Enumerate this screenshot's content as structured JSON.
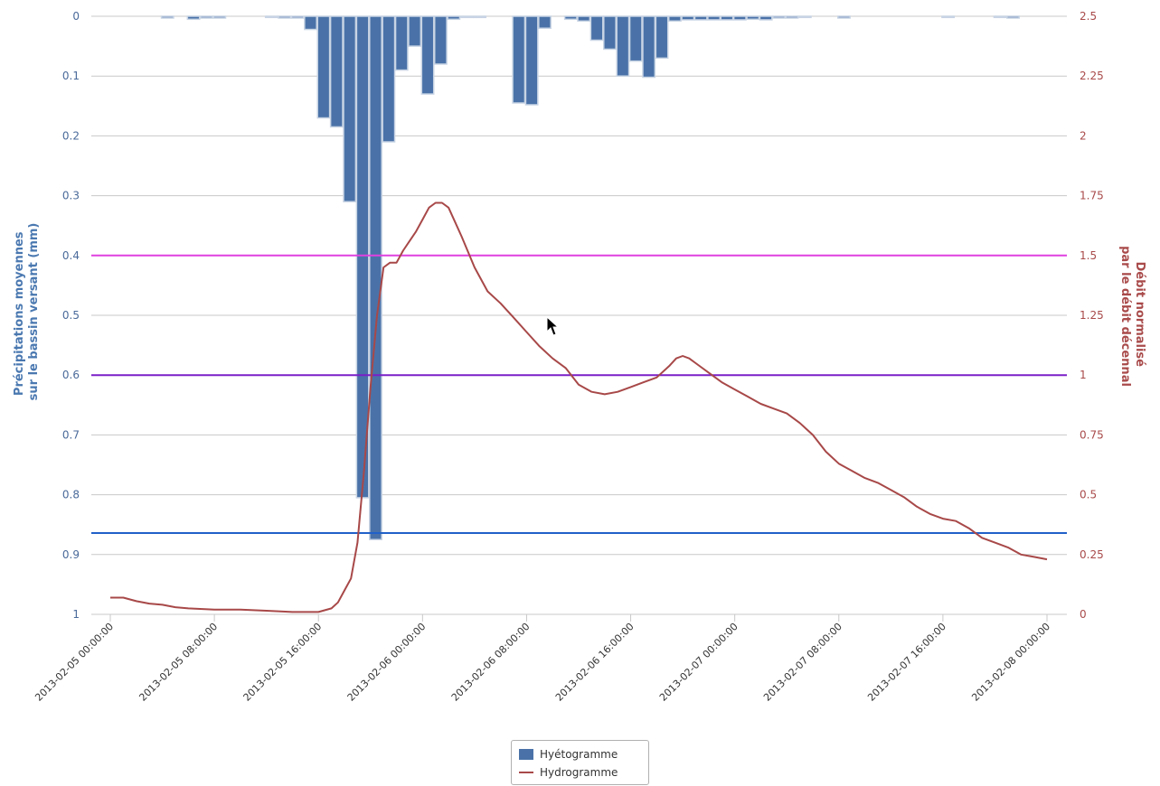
{
  "chart_data": {
    "type": "bar+line",
    "title": "",
    "y_left": {
      "label_lines": [
        "Précipitations moyennes",
        "sur le bassin versant (mm)"
      ],
      "range": [
        0,
        1
      ],
      "reversed": true,
      "ticks": [
        "0",
        "0.1",
        "0.2",
        "0.3",
        "0.4",
        "0.5",
        "0.6",
        "0.7",
        "0.8",
        "0.9",
        "1"
      ],
      "tick_values": [
        0,
        0.1,
        0.2,
        0.3,
        0.4,
        0.5,
        0.6,
        0.7,
        0.8,
        0.9,
        1
      ],
      "color": "#4a78b0"
    },
    "y_right": {
      "label_lines": [
        "Débit normalisé",
        "par le débit décennal"
      ],
      "range": [
        0,
        2.5
      ],
      "ticks": [
        "0",
        "0.25",
        "0.5",
        "0.75",
        "1",
        "1.25",
        "1.5",
        "1.75",
        "2",
        "2.25",
        "2.5"
      ],
      "tick_values": [
        0,
        0.25,
        0.5,
        0.75,
        1,
        1.25,
        1.5,
        1.75,
        2,
        2.25,
        2.5
      ],
      "color": "#a94a4a"
    },
    "x_axis": {
      "unit": "hours",
      "range": [
        0,
        72
      ],
      "ticks": [
        "2013-02-05 00:00:00",
        "2013-02-05 08:00:00",
        "2013-02-05 16:00:00",
        "2013-02-06 00:00:00",
        "2013-02-06 08:00:00",
        "2013-02-06 16:00:00",
        "2013-02-07 00:00:00",
        "2013-02-07 08:00:00",
        "2013-02-07 16:00:00",
        "2013-02-08 00:00:00"
      ],
      "tick_hours": [
        0,
        8,
        16,
        24,
        32,
        40,
        48,
        56,
        64,
        72
      ]
    },
    "thresholds_right_axis": [
      {
        "value": 1.5,
        "color": "#e040e0"
      },
      {
        "value": 1.0,
        "color": "#7a1fc8"
      },
      {
        "value": 0.34,
        "color": "#2060c8"
      }
    ],
    "series": [
      {
        "name": "Hyétogramme",
        "type": "bar",
        "axis": "left",
        "color": "#4a72a8",
        "bar_hours": [
          4,
          6,
          7,
          8,
          12,
          13,
          14,
          15,
          16,
          17,
          18,
          19,
          20,
          21,
          22,
          23,
          24,
          25,
          26,
          27,
          28,
          31,
          32,
          33,
          35,
          36,
          37,
          38,
          39,
          40,
          41,
          42,
          43,
          44,
          45,
          46,
          47,
          48,
          49,
          50,
          51,
          52,
          53,
          56,
          64,
          68,
          69
        ],
        "values": [
          0.003,
          0.005,
          0.003,
          0.003,
          0.002,
          0.003,
          0.003,
          0.022,
          0.17,
          0.185,
          0.31,
          0.805,
          0.875,
          0.21,
          0.09,
          0.05,
          0.13,
          0.08,
          0.005,
          0.002,
          0.002,
          0.145,
          0.148,
          0.02,
          0.005,
          0.008,
          0.04,
          0.055,
          0.1,
          0.075,
          0.102,
          0.07,
          0.008,
          0.006,
          0.006,
          0.006,
          0.006,
          0.006,
          0.005,
          0.006,
          0.003,
          0.003,
          0.002,
          0.003,
          0.002,
          0.002,
          0.003
        ]
      },
      {
        "name": "Hydrogramme",
        "type": "line",
        "axis": "right",
        "color": "#a84848",
        "x_hours": [
          0,
          1,
          2,
          3,
          4,
          5,
          6,
          8,
          10,
          12,
          14,
          15,
          16,
          17,
          17.5,
          18,
          18.5,
          19,
          19.5,
          20,
          20.5,
          21,
          21.5,
          22,
          22.5,
          23,
          23.5,
          24,
          24.5,
          25,
          25.5,
          26,
          26.5,
          27,
          28,
          29,
          30,
          31,
          32,
          33,
          34,
          35,
          36,
          37,
          38,
          39,
          40,
          41,
          42,
          43,
          43.5,
          44,
          44.5,
          45,
          46,
          47,
          48,
          49,
          50,
          51,
          52,
          53,
          54,
          55,
          56,
          57,
          58,
          59,
          60,
          61,
          62,
          63,
          64,
          65,
          66,
          67,
          68,
          69,
          70,
          71,
          72
        ],
        "values": [
          0.07,
          0.07,
          0.055,
          0.045,
          0.04,
          0.03,
          0.025,
          0.02,
          0.02,
          0.015,
          0.01,
          0.01,
          0.01,
          0.025,
          0.05,
          0.1,
          0.15,
          0.3,
          0.6,
          0.95,
          1.25,
          1.45,
          1.47,
          1.47,
          1.52,
          1.56,
          1.6,
          1.65,
          1.7,
          1.72,
          1.72,
          1.7,
          1.64,
          1.58,
          1.45,
          1.35,
          1.3,
          1.24,
          1.18,
          1.12,
          1.07,
          1.03,
          0.96,
          0.93,
          0.92,
          0.93,
          0.95,
          0.97,
          0.99,
          1.04,
          1.07,
          1.08,
          1.07,
          1.05,
          1.01,
          0.97,
          0.94,
          0.91,
          0.88,
          0.86,
          0.84,
          0.8,
          0.75,
          0.68,
          0.63,
          0.6,
          0.57,
          0.55,
          0.52,
          0.49,
          0.45,
          0.42,
          0.4,
          0.39,
          0.36,
          0.32,
          0.3,
          0.28,
          0.25,
          0.24,
          0.23
        ]
      }
    ],
    "legend_position": "bottom-center",
    "grid": true
  },
  "legend": {
    "items": [
      {
        "label": "Hyétogramme",
        "color": "#4a72a8",
        "kind": "box"
      },
      {
        "label": "Hydrogramme",
        "color": "#a84848",
        "kind": "line"
      }
    ]
  },
  "cursor": {
    "icon": "mouse-pointer-icon"
  }
}
